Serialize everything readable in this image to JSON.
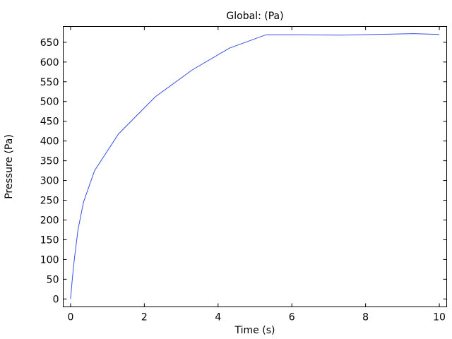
{
  "chart_data": {
    "type": "line",
    "title": "Global:  (Pa)",
    "xlabel": "Time (s)",
    "ylabel": "Pressure (Pa)",
    "xlim": [
      -0.2,
      10.2
    ],
    "ylim": [
      -20,
      690
    ],
    "xticks": [
      0,
      2,
      4,
      6,
      8,
      10
    ],
    "yticks": [
      0,
      50,
      100,
      150,
      200,
      250,
      300,
      350,
      400,
      450,
      500,
      550,
      600,
      650
    ],
    "grid": false,
    "legend": "none",
    "colors": {
      "series": "#3a50e0",
      "axes": "#000000"
    },
    "series": [
      {
        "x": [
          0,
          0.05,
          0.1,
          0.2,
          0.35,
          0.65,
          1.3,
          2.3,
          3.3,
          4.3,
          5.3,
          6.3,
          7.3,
          8.3,
          9.3,
          10
        ],
        "values": [
          0,
          55,
          100,
          175,
          245,
          325,
          418,
          512,
          580,
          635,
          669,
          669,
          668,
          670,
          672,
          670
        ]
      }
    ]
  }
}
